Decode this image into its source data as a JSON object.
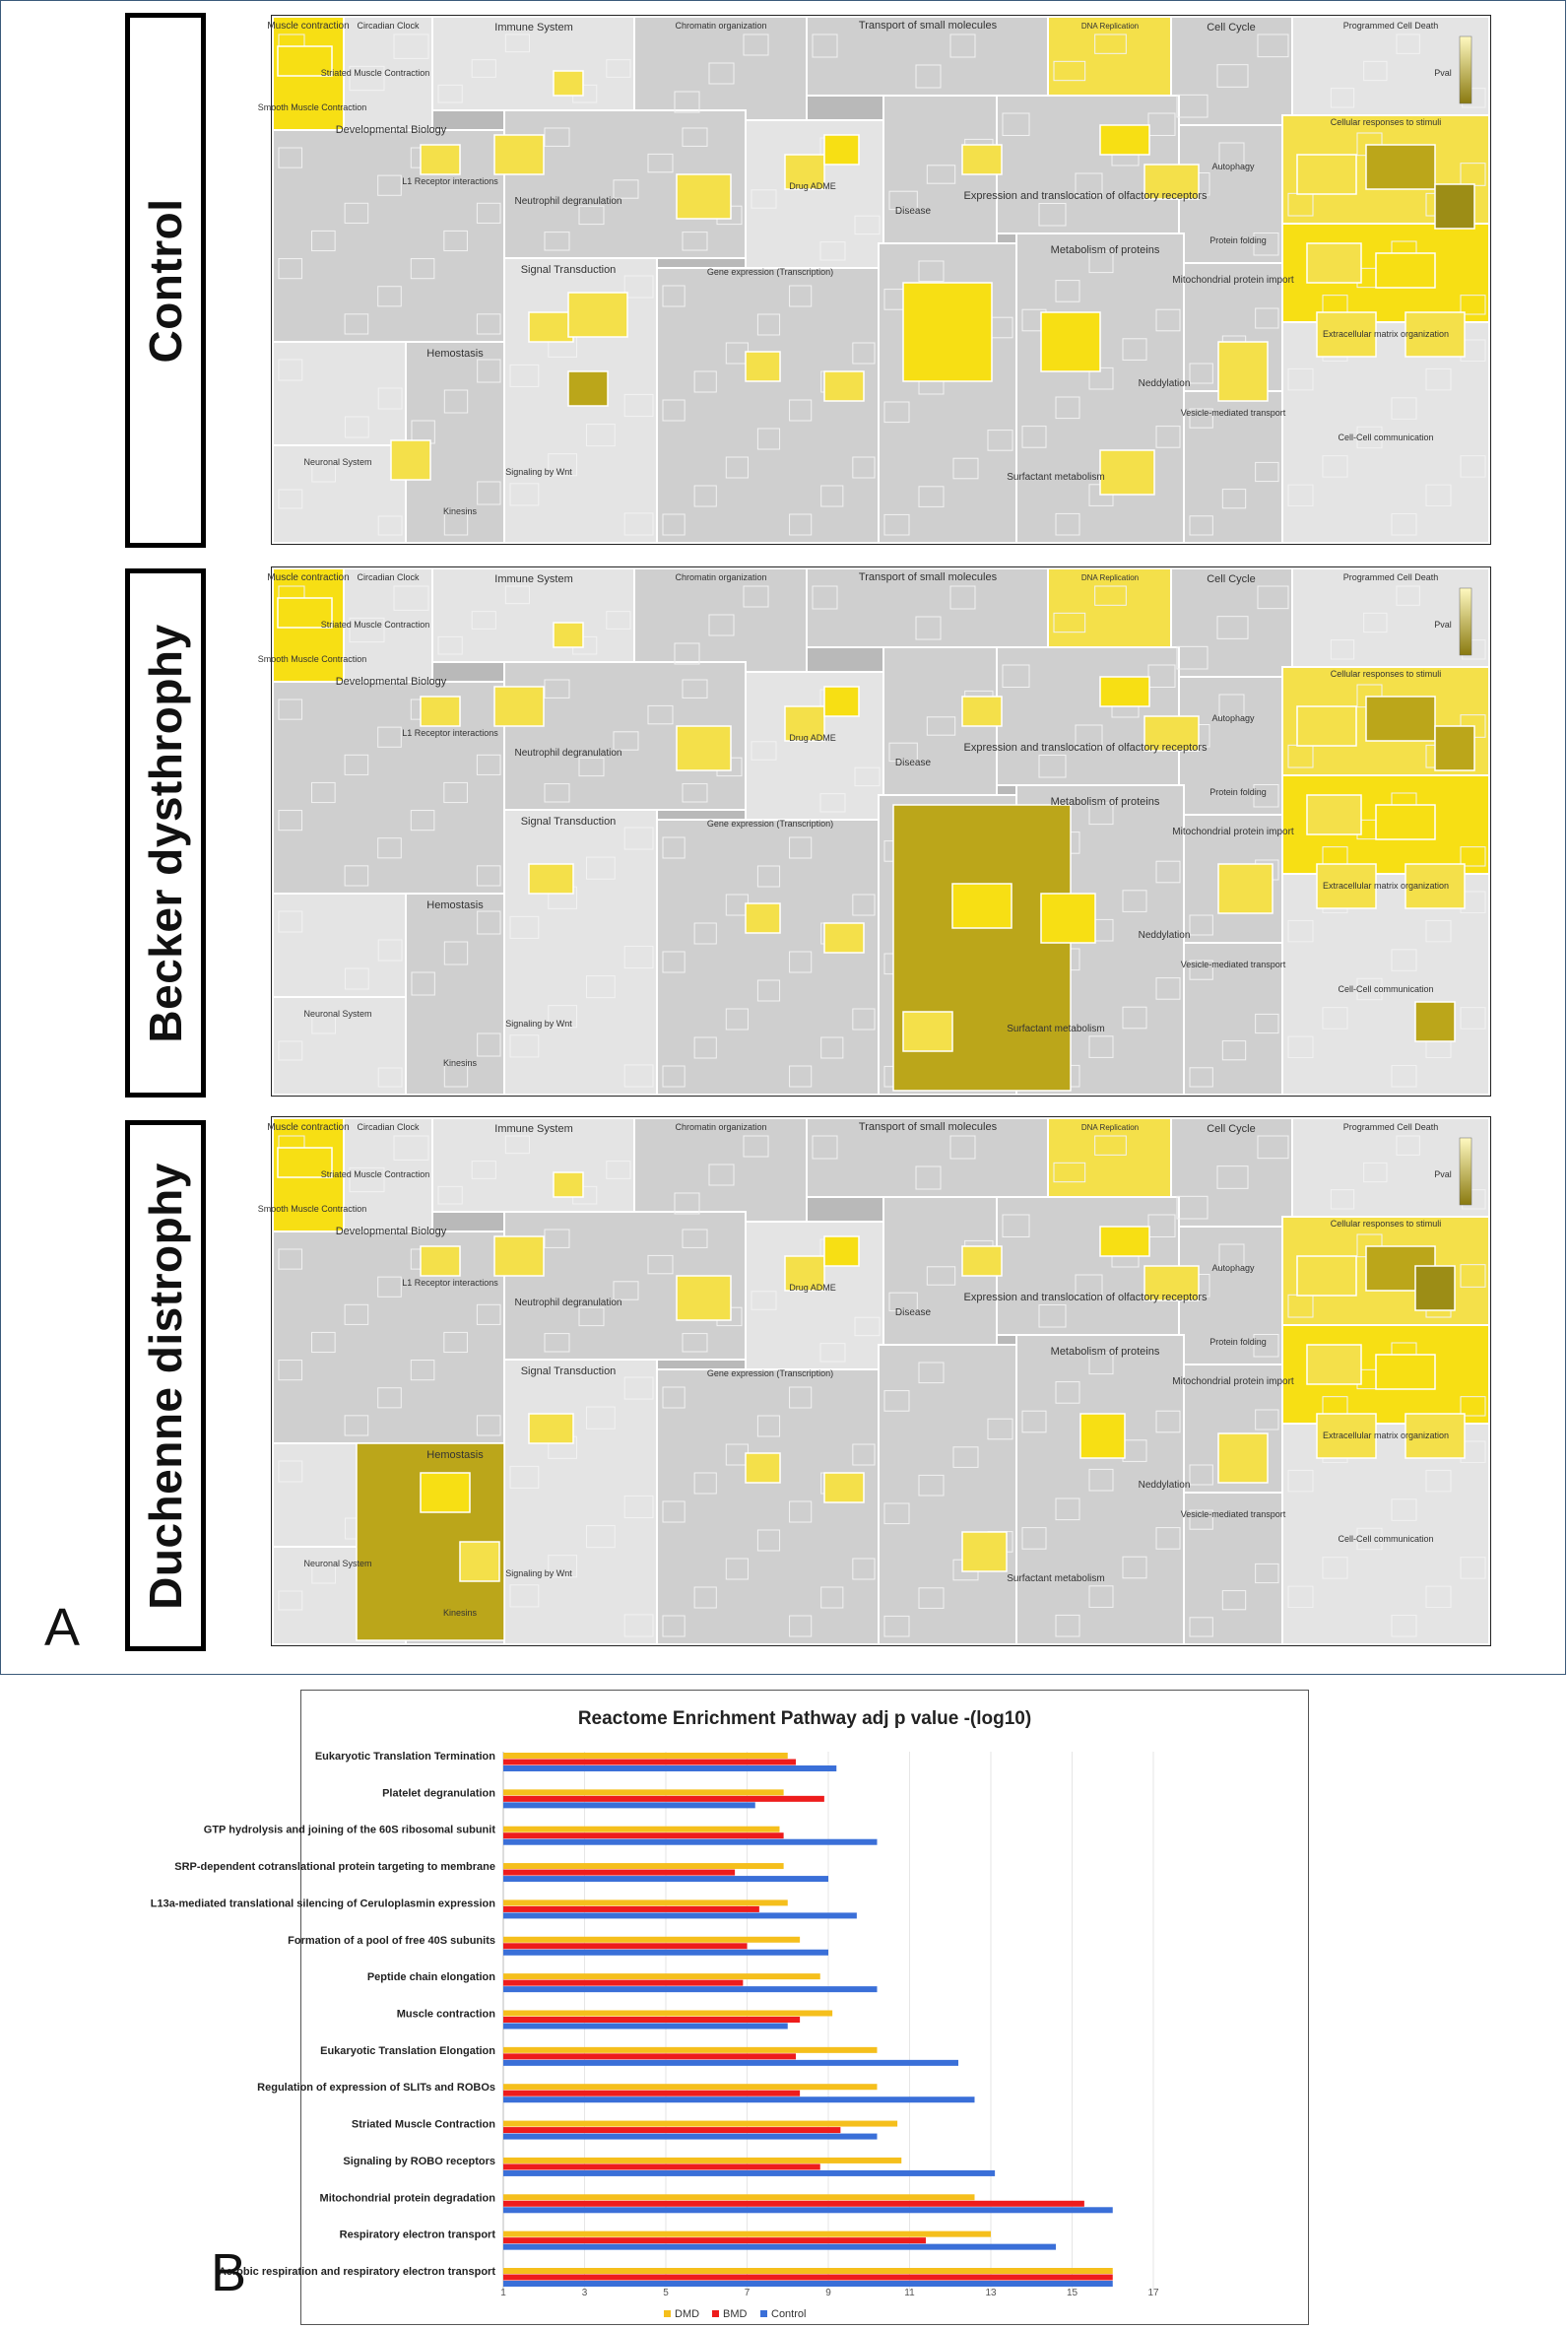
{
  "panel_a": {
    "letter": "A",
    "rows": [
      {
        "label": "Control",
        "variant": "control"
      },
      {
        "label": "Becker dysthrophy",
        "variant": "bmd"
      },
      {
        "label": "Duchenne distrophy",
        "variant": "dmd"
      }
    ],
    "reactome_labels": {
      "muscle": "Muscle contraction",
      "circadian": "Circadian Clock",
      "immune": "Immune System",
      "chromatin": "Chromatin organization",
      "transport": "Transport of small molecules",
      "dna_rep": "DNA Replication",
      "cell_cycle": "Cell Cycle",
      "pcd": "Programmed Cell Death",
      "striated": "Striated Muscle Contraction",
      "smooth": "Smooth Muscle Contraction",
      "dev_bio": "Developmental Biology",
      "l1": "L1 Receptor interactions",
      "neutrophil": "Neutrophil degranulation",
      "expression": "Expression and translocation of olfactory receptors",
      "cell_resp": "Cellular responses to stimuli",
      "disease": "Disease",
      "drug": "Drug ADME",
      "signal": "Signal Transduction",
      "metab_prot": "Metabolism of proteins",
      "mito_import": "Mitochondrial protein import",
      "hemostasis": "Hemostasis",
      "neuronal": "Neuronal System",
      "neddylation": "Neddylation",
      "surfactant": "Surfactant metabolism",
      "vesicle": "Vesicle-mediated transport",
      "signaling_wnt": "Signaling by Wnt",
      "kinesins": "Kinesins",
      "protein_folding": "Protein folding",
      "autophagy": "Autophagy",
      "gene_exp": "Gene expression (Transcription)",
      "cell_cell": "Cell-Cell communication",
      "ecm": "Extracellular matrix organization",
      "pvalue": "Pval"
    }
  },
  "panel_b": {
    "letter": "B",
    "chart_data": {
      "type": "bar",
      "orientation": "horizontal",
      "title": "Reactome  Enrichment Pathway adj p value -(log10)",
      "categories": [
        "Eukaryotic Translation Termination",
        "Platelet degranulation",
        "GTP hydrolysis and joining of the 60S ribosomal subunit",
        "SRP-dependent cotranslational protein targeting to membrane",
        "L13a-mediated translational silencing of Ceruloplasmin expression",
        "Formation of a pool of free 40S subunits",
        "Peptide chain elongation",
        "Muscle contraction",
        "Eukaryotic Translation Elongation",
        "Regulation of expression of SLITs and ROBOs",
        "Striated Muscle Contraction",
        "Signaling by ROBO receptors",
        "Mitochondrial protein degradation",
        "Respiratory electron transport",
        "Aerobic respiration and respiratory electron transport"
      ],
      "series": [
        {
          "name": "DMD",
          "color": "#f5bf1c",
          "values": [
            8.0,
            7.9,
            7.8,
            7.9,
            8.0,
            8.3,
            8.8,
            9.1,
            10.2,
            10.2,
            10.7,
            10.8,
            12.6,
            13.0,
            16.0
          ]
        },
        {
          "name": "BMD",
          "color": "#ee1c1c",
          "values": [
            8.2,
            8.9,
            7.9,
            6.7,
            7.3,
            7.0,
            6.9,
            8.3,
            8.2,
            8.3,
            9.3,
            8.8,
            15.3,
            11.4,
            16.0
          ]
        },
        {
          "name": "Control",
          "color": "#3a6fd8",
          "values": [
            9.2,
            7.2,
            10.2,
            9.0,
            9.7,
            9.0,
            10.2,
            8.0,
            12.2,
            12.6,
            10.2,
            13.1,
            16.0,
            14.6,
            16.0
          ]
        }
      ],
      "xlim": [
        1,
        17
      ],
      "xticks": [
        1,
        3,
        5,
        7,
        9,
        11,
        13,
        15,
        17
      ],
      "xlabel": "",
      "ylabel": "",
      "legend_position": "bottom",
      "grid": true
    }
  }
}
